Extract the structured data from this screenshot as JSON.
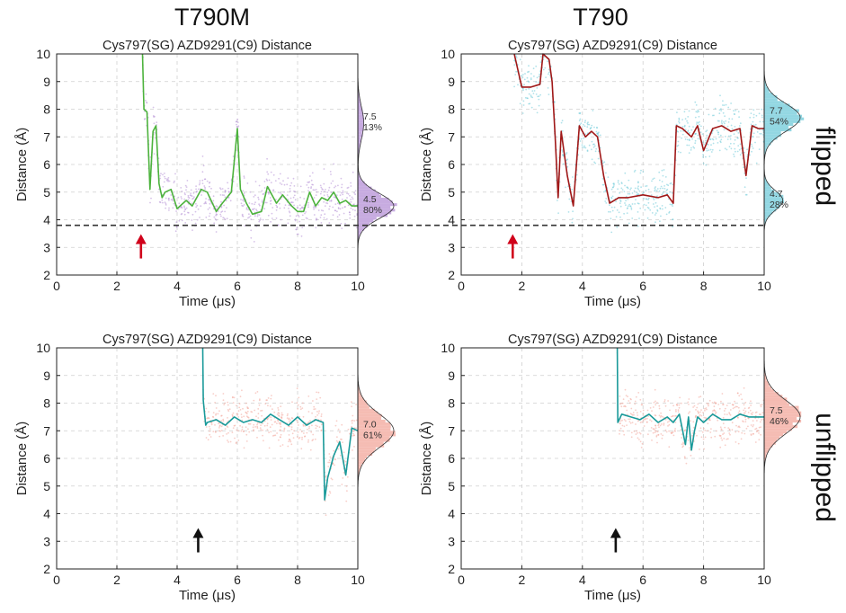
{
  "figure": {
    "col_titles": [
      "T790M",
      "T790"
    ],
    "row_labels": [
      "flipped",
      "unflipped"
    ],
    "reference_line_y": 3.8
  },
  "chart_data": [
    {
      "type": "line",
      "column": "T790M",
      "row": "flipped",
      "title": "Cys797(SG) AZD9291(C9) Distance",
      "xlabel": "Time (μs)",
      "ylabel": "Distance (Å)",
      "xlim": [
        0,
        10
      ],
      "ylim": [
        2,
        10
      ],
      "xticks": [
        0,
        2,
        4,
        6,
        8,
        10
      ],
      "yticks": [
        2,
        3,
        4,
        5,
        6,
        7,
        8,
        9,
        10
      ],
      "grid": true,
      "scatter_color": "#b48fd6",
      "line_color": "#4db33d",
      "arrow": {
        "x": 2.8,
        "color": "#d0021b"
      },
      "series": [
        {
          "x": [
            2.85,
            2.9,
            3.0,
            3.1,
            3.2,
            3.3,
            3.4,
            3.5,
            3.6,
            3.8,
            4.0,
            4.3,
            4.5,
            4.8,
            5.0,
            5.3,
            5.5,
            5.8,
            6.0,
            6.1,
            6.3,
            6.5,
            6.8,
            7.0,
            7.3,
            7.5,
            7.8,
            8.0,
            8.2,
            8.4,
            8.6,
            8.8,
            9.0,
            9.2,
            9.4,
            9.6,
            9.8,
            10.0
          ],
          "y": [
            10.0,
            8.0,
            7.9,
            5.1,
            7.2,
            7.4,
            5.3,
            4.8,
            5.0,
            5.1,
            4.4,
            4.7,
            4.5,
            5.1,
            5.0,
            4.3,
            4.6,
            5.0,
            7.3,
            5.1,
            4.6,
            4.2,
            4.3,
            5.2,
            4.6,
            4.9,
            4.5,
            4.3,
            4.3,
            5.0,
            4.5,
            4.8,
            4.7,
            5.0,
            4.6,
            4.7,
            4.5,
            4.5
          ]
        }
      ],
      "histogram": {
        "color": "#b48fd6",
        "peaks": [
          {
            "mean": 4.5,
            "sd": 0.45,
            "weight": 0.8
          },
          {
            "mean": 7.5,
            "sd": 0.6,
            "weight": 0.13
          }
        ]
      },
      "annotations": [
        {
          "value": "7.5",
          "percent": "13%",
          "y": 7.5
        },
        {
          "value": "4.5",
          "percent": "80%",
          "y": 4.5
        }
      ]
    },
    {
      "type": "line",
      "column": "T790",
      "row": "flipped",
      "title": "Cys797(SG) AZD9291(C9) Distance",
      "xlabel": "Time (μs)",
      "ylabel": "Distance (Å)",
      "xlim": [
        0,
        10
      ],
      "ylim": [
        2,
        10
      ],
      "xticks": [
        0,
        2,
        4,
        6,
        8,
        10
      ],
      "yticks": [
        2,
        3,
        4,
        5,
        6,
        7,
        8,
        9,
        10
      ],
      "grid": true,
      "scatter_color": "#6fcad8",
      "line_color": "#a01818",
      "arrow": {
        "x": 1.7,
        "color": "#d0021b"
      },
      "series": [
        {
          "x": [
            1.75,
            2.0,
            2.3,
            2.6,
            2.7,
            2.9,
            3.0,
            3.1,
            3.2,
            3.3,
            3.5,
            3.7,
            3.9,
            4.1,
            4.3,
            4.5,
            4.7,
            4.9,
            5.2,
            5.5,
            6.0,
            6.5,
            6.8,
            7.0,
            7.1,
            7.3,
            7.6,
            7.8,
            8.0,
            8.3,
            8.6,
            8.9,
            9.2,
            9.4,
            9.6,
            9.8,
            10.0
          ],
          "y": [
            10.0,
            8.8,
            8.8,
            8.9,
            10.0,
            9.8,
            9.0,
            7.0,
            4.8,
            7.2,
            5.6,
            4.5,
            7.4,
            7.0,
            7.2,
            7.0,
            5.6,
            4.6,
            4.8,
            4.8,
            4.9,
            4.8,
            4.9,
            4.6,
            7.4,
            7.3,
            7.0,
            7.4,
            6.5,
            7.3,
            7.4,
            7.2,
            7.3,
            5.6,
            7.4,
            7.3,
            7.3
          ]
        }
      ],
      "histogram": {
        "color": "#6fcad8",
        "peaks": [
          {
            "mean": 7.7,
            "sd": 0.5,
            "weight": 0.54
          },
          {
            "mean": 4.7,
            "sd": 0.35,
            "weight": 0.28
          }
        ]
      },
      "annotations": [
        {
          "value": "7.7",
          "percent": "54%",
          "y": 7.7
        },
        {
          "value": "4.7",
          "percent": "28%",
          "y": 4.7
        }
      ]
    },
    {
      "type": "line",
      "column": "T790M",
      "row": "unflipped",
      "title": "Cys797(SG) AZD9291(C9) Distance",
      "xlabel": "Time (μs)",
      "ylabel": "Distance (Å)",
      "xlim": [
        0,
        10
      ],
      "ylim": [
        2,
        10
      ],
      "xticks": [
        0,
        2,
        4,
        6,
        8,
        10
      ],
      "yticks": [
        2,
        3,
        4,
        5,
        6,
        7,
        8,
        9,
        10
      ],
      "grid": true,
      "scatter_color": "#f2a69a",
      "line_color": "#1a9a9a",
      "arrow": {
        "x": 4.7,
        "color": "#111111"
      },
      "series": [
        {
          "x": [
            4.85,
            4.87,
            4.95,
            5.0,
            5.3,
            5.6,
            5.9,
            6.2,
            6.5,
            6.8,
            7.1,
            7.4,
            7.7,
            8.0,
            8.3,
            8.6,
            8.85,
            8.9,
            9.0,
            9.2,
            9.4,
            9.6,
            9.8,
            10.0
          ],
          "y": [
            10.0,
            8.1,
            7.2,
            7.3,
            7.4,
            7.2,
            7.5,
            7.3,
            7.4,
            7.3,
            7.6,
            7.4,
            7.2,
            7.5,
            7.2,
            7.4,
            7.3,
            4.5,
            5.3,
            6.1,
            6.6,
            5.4,
            7.1,
            7.0
          ]
        }
      ],
      "histogram": {
        "color": "#f2a69a",
        "peaks": [
          {
            "mean": 7.0,
            "sd": 0.6,
            "weight": 0.61
          }
        ]
      },
      "annotations": [
        {
          "value": "7.0",
          "percent": "61%",
          "y": 7.0
        }
      ]
    },
    {
      "type": "line",
      "column": "T790",
      "row": "unflipped",
      "title": "Cys797(SG) AZD9291(C9) Distance",
      "xlabel": "Time (μs)",
      "ylabel": "Distance (Å)",
      "xlim": [
        0,
        10
      ],
      "ylim": [
        2,
        10
      ],
      "xticks": [
        0,
        2,
        4,
        6,
        8,
        10
      ],
      "yticks": [
        2,
        3,
        4,
        5,
        6,
        7,
        8,
        9,
        10
      ],
      "grid": true,
      "scatter_color": "#f2a69a",
      "line_color": "#1a9a9a",
      "arrow": {
        "x": 5.1,
        "color": "#111111"
      },
      "series": [
        {
          "x": [
            5.15,
            5.17,
            5.3,
            5.6,
            5.9,
            6.2,
            6.5,
            6.8,
            7.0,
            7.2,
            7.4,
            7.5,
            7.6,
            7.7,
            7.8,
            8.0,
            8.3,
            8.6,
            8.9,
            9.2,
            9.5,
            9.8,
            10.0
          ],
          "y": [
            10.0,
            7.3,
            7.6,
            7.5,
            7.4,
            7.6,
            7.3,
            7.5,
            7.3,
            7.6,
            6.5,
            7.5,
            6.3,
            7.0,
            7.5,
            7.3,
            7.6,
            7.4,
            7.4,
            7.6,
            7.5,
            7.5,
            7.5
          ]
        }
      ],
      "histogram": {
        "color": "#f2a69a",
        "peaks": [
          {
            "mean": 7.5,
            "sd": 0.6,
            "weight": 0.46
          }
        ]
      },
      "annotations": [
        {
          "value": "7.5",
          "percent": "46%",
          "y": 7.5
        }
      ]
    }
  ]
}
